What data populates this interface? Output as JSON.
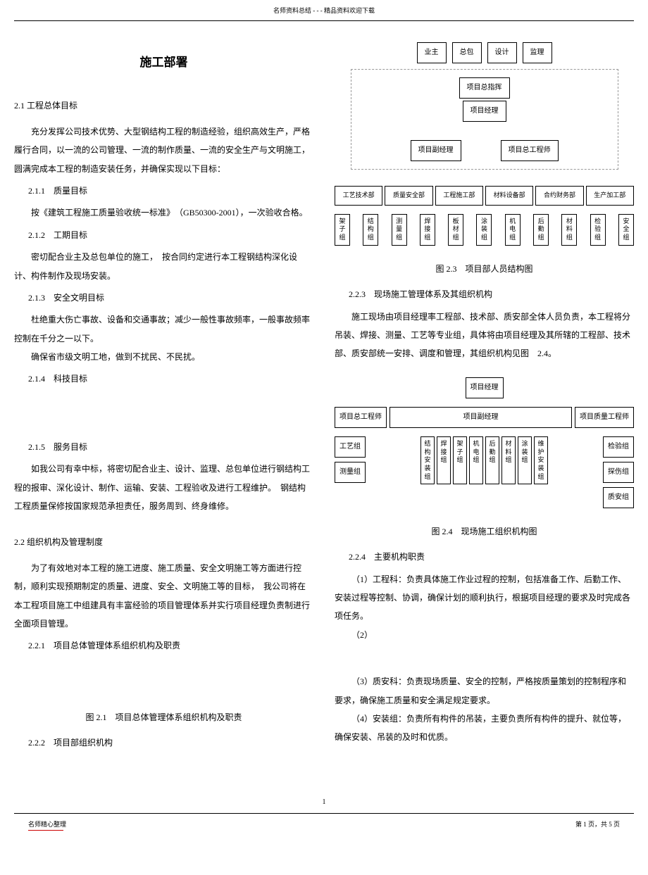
{
  "header": "名师资料总结 - - - 精品资料欢迎下载",
  "title": "施工部署",
  "left": {
    "s21": "2.1 工程总体目标",
    "p1": "充分发挥公司技术优势、大型钢结构工程的制造经验，组织高效生产，严格履行合同，以一流的公司管理、一流的制作质量、一流的安全生产与文明施工，圆满完成本工程的制造安装任务，并确保实现以下目标：",
    "s211": "2.1.1　质量目标",
    "p2": "按《建筑工程施工质量验收统一标准》　（GB50300-2001），一次验收合格。",
    "s212": "2.1.2　工期目标",
    "p3": "密切配合业主及总包单位的施工，　按合同约定进行本工程钢结构深化设计、构件制作及现场安装。",
    "s213": "2.1.3　安全文明目标",
    "p4": "杜绝重大伤亡事故、设备和交通事故；减少一般性事故频率，一般事故频率控制在千分之一以下。",
    "p5": "确保省市级文明工地，做到不扰民、不民扰。",
    "s214": "2.1.4　科技目标",
    "s215": "2.1.5　服务目标",
    "p6": "如我公司有幸中标，将密切配合业主、设计、监理、总包单位进行钢结构工程的报审、深化设计、制作、运输、安装、工程验收及进行工程维护。　钢结构工程质量保修按国家规范承担责任，服务周到、终身维修。",
    "s22": "2.2 组织机构及管理制度",
    "p7": "为了有效地对本工程的施工进度、施工质量、安全文明施工等方面进行控制，顺利实现预期制定的质量、进度、安全、文明施工等的目标，　我公司将在本工程项目施工中组建具有丰富经验的项目管理体系并实行项目经理负责制进行全面项目管理。",
    "s221": "2.2.1　项目总体管理体系组织机构及职责",
    "fig21": "图 2.1　项目总体管理体系组织机构及职责",
    "s222": "2.2.2　项目部组织机构"
  },
  "right": {
    "fig23": "图 2.3　项目部人员结构图",
    "s223": "2.2.3　现场施工管理体系及其组织机构",
    "p8": "施工现场由项目经理率工程部、技术部、质安部全体人员负责，本工程将分吊装、焊接、测量、工艺等专业组，具体将由项目经理及其所辖的工程部、技术部、质安部统一安排、调度和管理，其组织机构见图　2.4。",
    "fig24": "图 2.4　现场施工组织机构图",
    "s224": "2.2.4　主要机构职责",
    "p9": "（1）工程科：负责具体施工作业过程的控制，包括准备工作、后勤工作、安装过程等控制、协调，确保计划的顺利执行，根据项目经理的要求及时完成各项任务。",
    "p10": "（2）",
    "p11": "（3）质安科：负责现场质量、安全的控制，严格按质量策划的控制程序和要求，确保施工质量和安全满足规定要求。",
    "p12": "（4）安装组：负责所有构件的吊装，主要负责所有构件的提升、就位等，确保安装、吊装的及时和优质。"
  },
  "chart1": {
    "top": [
      "业主",
      "总包",
      "设计",
      "监理"
    ],
    "cmd": "项目总指挥",
    "mgr": "项目经理",
    "deputy": "项目副经理",
    "chief": "项目总工程师",
    "depts": [
      "工艺技术部",
      "质量安全部",
      "工程施工部",
      "材料设备部",
      "合约财务部",
      "生产加工部"
    ],
    "teams": [
      "架子组",
      "结构组",
      "测量组",
      "焊接组",
      "板材组",
      "涂装组",
      "机电组",
      "后勤组",
      "材料组",
      "检验组",
      "安全组"
    ]
  },
  "chart2": {
    "top": "项目经理",
    "mid": [
      "项目总工程师",
      "项目副经理",
      "项目质量工程师"
    ],
    "left": [
      "工艺组",
      "测量组"
    ],
    "right": [
      "检验组",
      "探伤组",
      "质安组"
    ],
    "center": [
      "结构安装组",
      "焊接组",
      "架子组",
      "机电组",
      "后勤组",
      "材料组",
      "涂装组",
      "维护安装组"
    ]
  },
  "pageNum": "1",
  "footer": {
    "left": "名师精心整理",
    "right": "第 1 页，共 5 页"
  }
}
